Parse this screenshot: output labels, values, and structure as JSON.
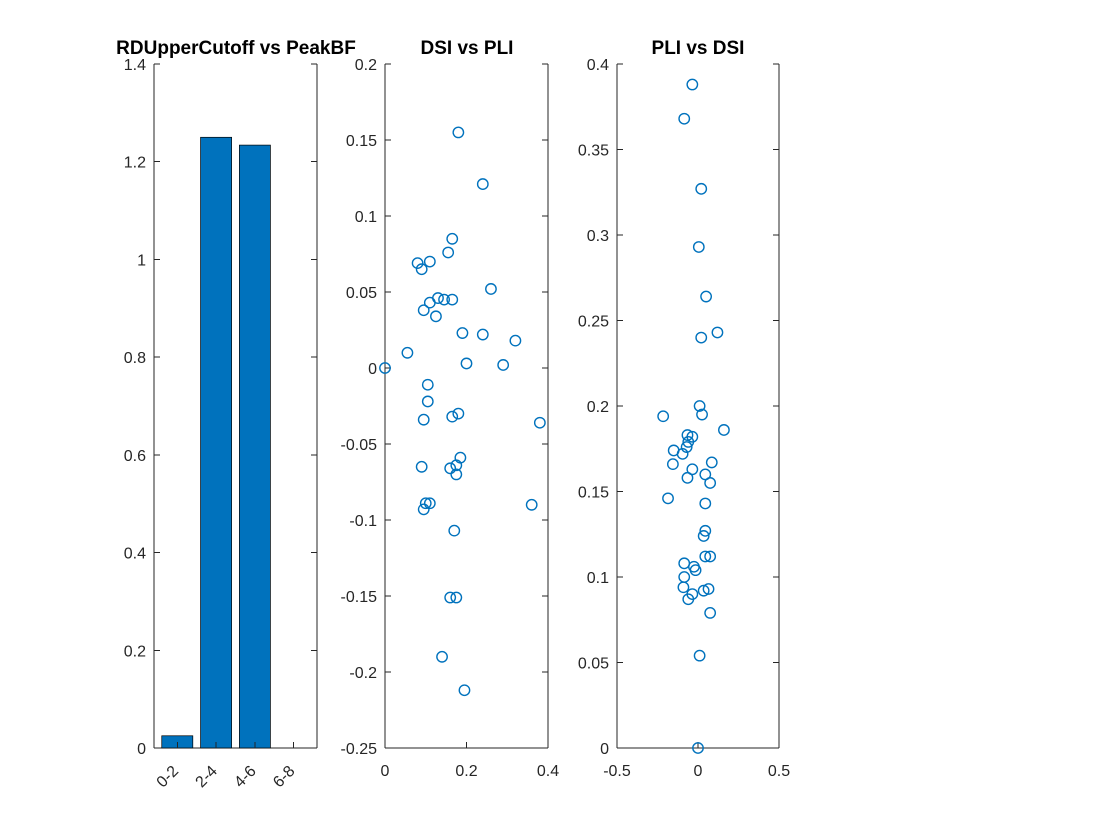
{
  "colors": {
    "series": "#0072BD",
    "axis": "#262626"
  },
  "chart_data": [
    {
      "type": "bar",
      "title": "RDUpperCutoff vs PeakBF",
      "categories": [
        "0-2",
        "2-4",
        "4-6",
        "6-8"
      ],
      "values": [
        0.025,
        1.25,
        1.234,
        0
      ],
      "ylim": [
        0,
        1.4
      ],
      "yticks": [
        0,
        0.2,
        0.4,
        0.6,
        0.8,
        1,
        1.2,
        1.4
      ],
      "ytick_labels": [
        "0",
        "0.2",
        "0.4",
        "0.6",
        "0.8",
        "1",
        "1.2",
        "1.4"
      ]
    },
    {
      "type": "scatter",
      "title": "DSI vs PLI",
      "xlim": [
        0,
        0.4
      ],
      "ylim": [
        -0.25,
        0.2
      ],
      "xticks": [
        0,
        0.2,
        0.4
      ],
      "xtick_labels": [
        "0",
        "0.2",
        "0.4"
      ],
      "yticks": [
        -0.25,
        -0.2,
        -0.15,
        -0.1,
        -0.05,
        0,
        0.05,
        0.1,
        0.15,
        0.2
      ],
      "ytick_labels": [
        "-0.25",
        "-0.2",
        "-0.15",
        "-0.1",
        "-0.05",
        "0",
        "0.05",
        "0.1",
        "0.15",
        "0.2"
      ],
      "points": [
        [
          0.0,
          0.0
        ],
        [
          0.18,
          0.155
        ],
        [
          0.24,
          0.121
        ],
        [
          0.165,
          0.085
        ],
        [
          0.155,
          0.076
        ],
        [
          0.08,
          0.069
        ],
        [
          0.09,
          0.065
        ],
        [
          0.11,
          0.07
        ],
        [
          0.26,
          0.052
        ],
        [
          0.13,
          0.046
        ],
        [
          0.145,
          0.045
        ],
        [
          0.165,
          0.045
        ],
        [
          0.11,
          0.043
        ],
        [
          0.095,
          0.038
        ],
        [
          0.125,
          0.034
        ],
        [
          0.19,
          0.023
        ],
        [
          0.24,
          0.022
        ],
        [
          0.32,
          0.018
        ],
        [
          0.055,
          0.01
        ],
        [
          0.2,
          0.003
        ],
        [
          0.29,
          0.002
        ],
        [
          0.105,
          -0.011
        ],
        [
          0.105,
          -0.022
        ],
        [
          0.18,
          -0.03
        ],
        [
          0.165,
          -0.032
        ],
        [
          0.095,
          -0.034
        ],
        [
          0.38,
          -0.036
        ],
        [
          0.185,
          -0.059
        ],
        [
          0.09,
          -0.065
        ],
        [
          0.175,
          -0.064
        ],
        [
          0.16,
          -0.066
        ],
        [
          0.175,
          -0.07
        ],
        [
          0.1,
          -0.089
        ],
        [
          0.11,
          -0.089
        ],
        [
          0.095,
          -0.093
        ],
        [
          0.36,
          -0.09
        ],
        [
          0.17,
          -0.107
        ],
        [
          0.16,
          -0.151
        ],
        [
          0.175,
          -0.151
        ],
        [
          0.14,
          -0.19
        ],
        [
          0.195,
          -0.212
        ]
      ]
    },
    {
      "type": "scatter",
      "title": "PLI vs DSI",
      "xlim": [
        -0.5,
        0.5
      ],
      "ylim": [
        0,
        0.4
      ],
      "xticks": [
        -0.5,
        0,
        0.5
      ],
      "xtick_labels": [
        "-0.5",
        "0",
        "0.5"
      ],
      "yticks": [
        0,
        0.05,
        0.1,
        0.15,
        0.2,
        0.25,
        0.3,
        0.35,
        0.4
      ],
      "ytick_labels": [
        "0",
        "0.05",
        "0.1",
        "0.15",
        "0.2",
        "0.25",
        "0.3",
        "0.35",
        "0.4"
      ],
      "points": [
        [
          -0.035,
          0.388
        ],
        [
          -0.085,
          0.368
        ],
        [
          0.02,
          0.327
        ],
        [
          0.005,
          0.293
        ],
        [
          0.05,
          0.264
        ],
        [
          0.12,
          0.243
        ],
        [
          0.02,
          0.24
        ],
        [
          0.01,
          0.2
        ],
        [
          -0.215,
          0.194
        ],
        [
          0.025,
          0.195
        ],
        [
          0.16,
          0.186
        ],
        [
          -0.065,
          0.183
        ],
        [
          -0.035,
          0.182
        ],
        [
          -0.15,
          0.174
        ],
        [
          -0.095,
          0.172
        ],
        [
          -0.07,
          0.176
        ],
        [
          -0.06,
          0.179
        ],
        [
          0.085,
          0.167
        ],
        [
          -0.155,
          0.166
        ],
        [
          -0.035,
          0.163
        ],
        [
          0.045,
          0.16
        ],
        [
          -0.065,
          0.158
        ],
        [
          0.075,
          0.155
        ],
        [
          -0.185,
          0.146
        ],
        [
          0.045,
          0.143
        ],
        [
          0.045,
          0.127
        ],
        [
          0.035,
          0.124
        ],
        [
          0.045,
          0.112
        ],
        [
          0.075,
          0.112
        ],
        [
          -0.085,
          0.108
        ],
        [
          -0.025,
          0.106
        ],
        [
          -0.015,
          0.104
        ],
        [
          -0.085,
          0.1
        ],
        [
          -0.09,
          0.094
        ],
        [
          0.035,
          0.092
        ],
        [
          0.065,
          0.093
        ],
        [
          -0.035,
          0.09
        ],
        [
          -0.06,
          0.087
        ],
        [
          0.075,
          0.079
        ],
        [
          0.01,
          0.054
        ],
        [
          0.0,
          0.0
        ]
      ]
    }
  ]
}
